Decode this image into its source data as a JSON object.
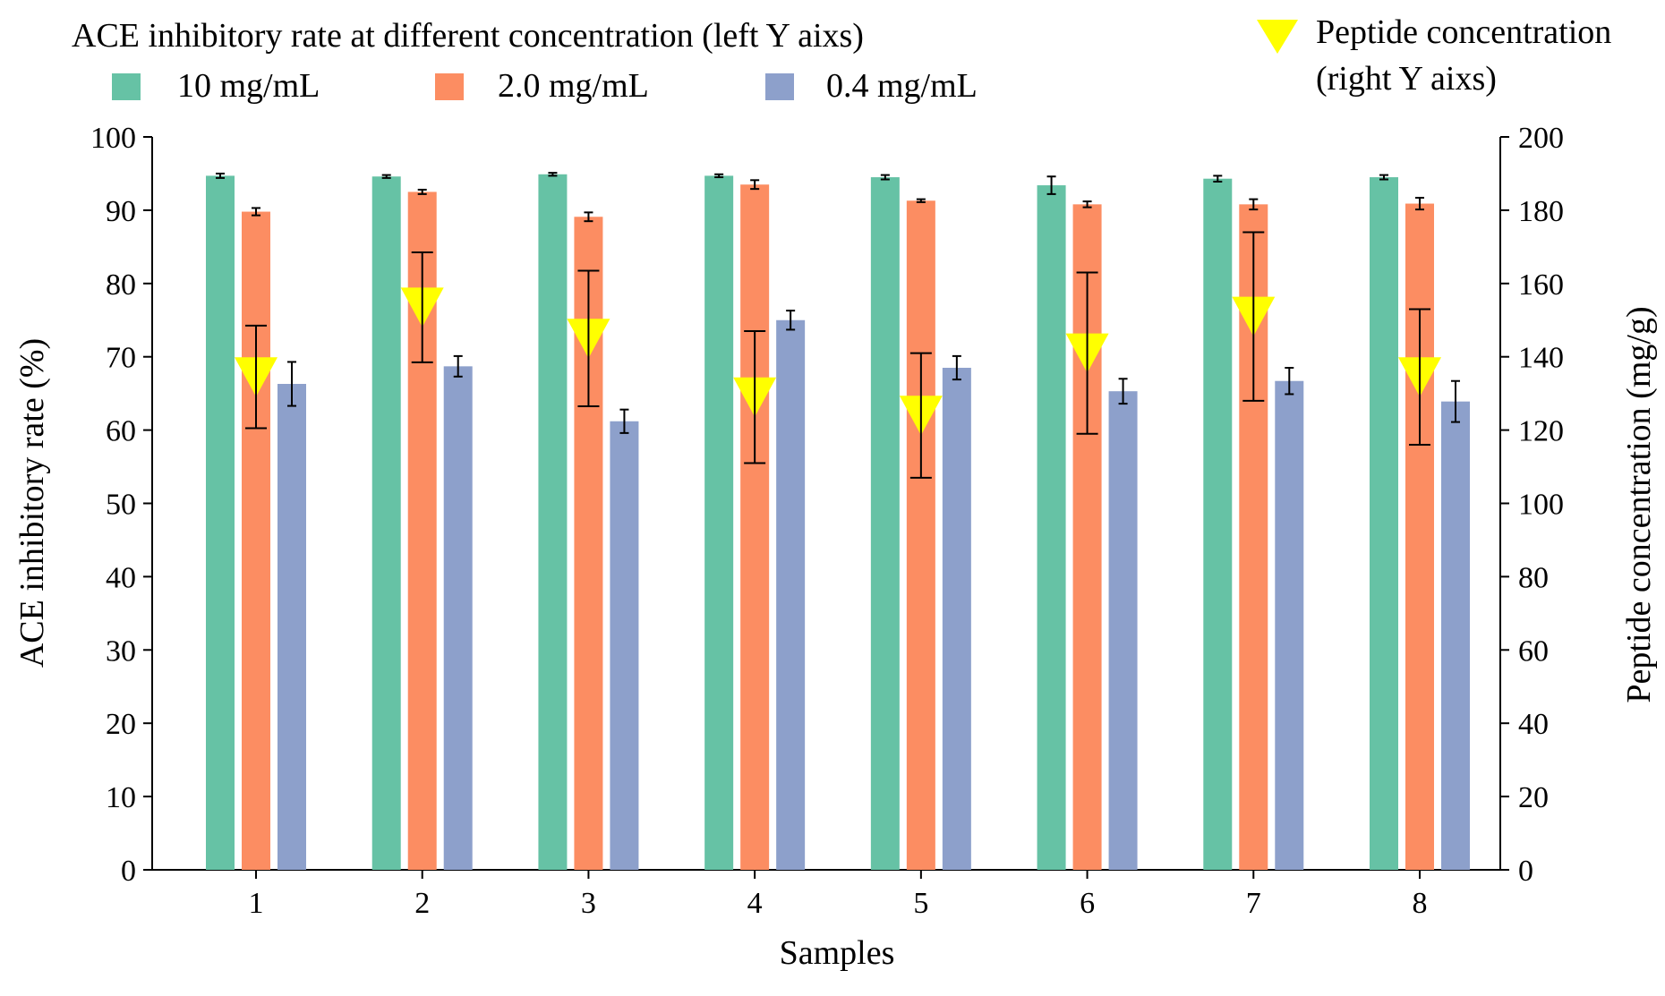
{
  "chart_data": {
    "type": "bar",
    "xlabel": "Samples",
    "ylabel": "ACE inhibitory rate (%)",
    "y2label": "Peptide concentration (mg/g)",
    "ylim": [
      0,
      100
    ],
    "y2lim": [
      0,
      200
    ],
    "yticks": [
      "0",
      "10",
      "20",
      "30",
      "40",
      "50",
      "60",
      "70",
      "80",
      "90",
      "100"
    ],
    "y2ticks": [
      "0",
      "20",
      "40",
      "60",
      "80",
      "100",
      "120",
      "140",
      "160",
      "180",
      "200"
    ],
    "categories": [
      "1",
      "2",
      "3",
      "4",
      "5",
      "6",
      "7",
      "8"
    ],
    "legend_title": "ACE inhibitory rate at different concentration (left Y aixs)",
    "series": [
      {
        "name": "10 mg/mL",
        "color": "#66c2a5",
        "values": [
          94.7,
          94.6,
          94.9,
          94.7,
          94.5,
          93.4,
          94.3,
          94.5
        ],
        "errors": [
          0.3,
          0.2,
          0.2,
          0.2,
          0.3,
          1.2,
          0.4,
          0.3
        ]
      },
      {
        "name": "2.0 mg/mL",
        "color": "#fc8d62",
        "values": [
          89.8,
          92.5,
          89.1,
          93.5,
          91.3,
          90.8,
          90.8,
          90.9
        ],
        "errors": [
          0.5,
          0.3,
          0.6,
          0.6,
          0.2,
          0.4,
          0.7,
          0.8
        ]
      },
      {
        "name": "0.4 mg/mL",
        "color": "#8da0cb",
        "values": [
          66.3,
          68.7,
          61.2,
          75.0,
          68.5,
          65.3,
          66.7,
          63.9
        ],
        "errors": [
          3.0,
          1.4,
          1.6,
          1.3,
          1.6,
          1.7,
          1.8,
          2.8
        ]
      }
    ],
    "overlay_series": {
      "name": "Peptide concentration",
      "name_line2": "(right Y aixs)",
      "axis": "right",
      "marker": "triangle-down",
      "color": "#ffff00",
      "values": [
        134.5,
        153.5,
        145.0,
        129.0,
        124.0,
        141.0,
        151.0,
        134.5
      ],
      "errors": [
        14.0,
        15.0,
        18.5,
        18.0,
        17.0,
        22.0,
        23.0,
        18.5
      ]
    },
    "legend_position": "top"
  }
}
